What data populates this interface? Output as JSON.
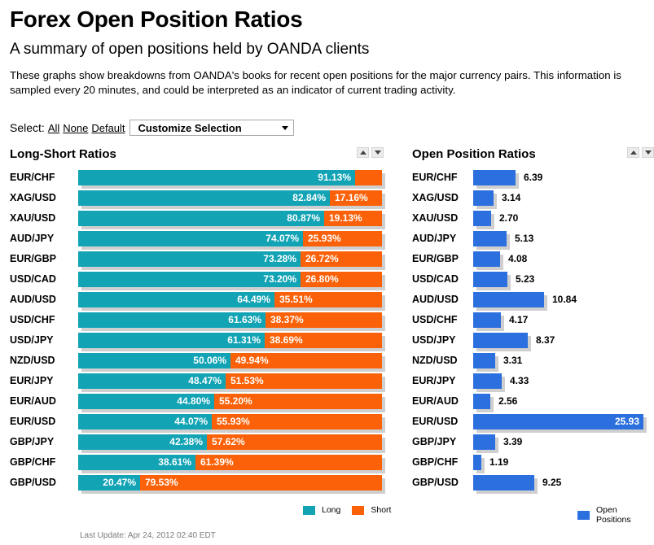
{
  "page": {
    "title": "Forex Open Position Ratios",
    "subtitle": "A summary of open positions held by OANDA clients",
    "description": "These graphs show breakdowns from OANDA's books for recent open positions for the major currency pairs. This information is sampled every 20 minutes, and could be interpreted as an indicator of current trading activity.",
    "select_label": "Select:",
    "select_all": "All",
    "select_none": "None",
    "select_default": "Default",
    "customize_label": "Customize Selection",
    "footer": "Last Update: Apr 24, 2012 02:40 EDT"
  },
  "colors": {
    "long": "#12a3b5",
    "short": "#fa6108",
    "open_positions": "#2c6fde",
    "shadow": "#cfcfcf"
  },
  "chart_data": [
    {
      "type": "bar",
      "orientation": "horizontal",
      "stacked": true,
      "title": "Long-Short Ratios",
      "categories": [
        "EUR/CHF",
        "XAG/USD",
        "XAU/USD",
        "AUD/JPY",
        "EUR/GBP",
        "USD/CAD",
        "AUD/USD",
        "USD/CHF",
        "USD/JPY",
        "NZD/USD",
        "EUR/JPY",
        "EUR/AUD",
        "EUR/USD",
        "GBP/JPY",
        "GBP/CHF",
        "GBP/USD"
      ],
      "series": [
        {
          "name": "Long",
          "values": [
            91.13,
            82.84,
            80.87,
            74.07,
            73.28,
            73.2,
            64.49,
            61.63,
            61.31,
            50.06,
            48.47,
            44.8,
            44.07,
            42.38,
            38.61,
            20.47
          ]
        },
        {
          "name": "Short",
          "values": [
            8.87,
            17.16,
            19.13,
            25.93,
            26.72,
            26.8,
            35.51,
            38.37,
            38.69,
            49.94,
            51.53,
            55.2,
            55.93,
            57.62,
            61.39,
            79.53
          ]
        }
      ],
      "labels_long": [
        "91.13%",
        "82.84%",
        "80.87%",
        "74.07%",
        "73.28%",
        "73.20%",
        "64.49%",
        "61.63%",
        "61.31%",
        "50.06%",
        "48.47%",
        "44.80%",
        "44.07%",
        "42.38%",
        "38.61%",
        "20.47%"
      ],
      "labels_short": [
        "",
        "17.16%",
        "19.13%",
        "25.93%",
        "26.72%",
        "26.80%",
        "35.51%",
        "38.37%",
        "38.69%",
        "49.94%",
        "51.53%",
        "55.20%",
        "55.93%",
        "57.62%",
        "61.39%",
        "79.53%"
      ],
      "xlim": [
        0,
        100
      ],
      "legend": {
        "position": "bottom-right",
        "entries": [
          "Long",
          "Short"
        ]
      }
    },
    {
      "type": "bar",
      "orientation": "horizontal",
      "title": "Open Position Ratios",
      "categories": [
        "EUR/CHF",
        "XAG/USD",
        "XAU/USD",
        "AUD/JPY",
        "EUR/GBP",
        "USD/CAD",
        "AUD/USD",
        "USD/CHF",
        "USD/JPY",
        "NZD/USD",
        "EUR/JPY",
        "EUR/AUD",
        "EUR/USD",
        "GBP/JPY",
        "GBP/CHF",
        "GBP/USD"
      ],
      "series": [
        {
          "name": "Open Positions",
          "values": [
            6.39,
            3.14,
            2.7,
            5.13,
            4.08,
            5.23,
            10.84,
            4.17,
            8.37,
            3.31,
            4.33,
            2.56,
            25.93,
            3.39,
            1.19,
            9.25
          ]
        }
      ],
      "labels": [
        "6.39",
        "3.14",
        "2.70",
        "5.13",
        "4.08",
        "5.23",
        "10.84",
        "4.17",
        "8.37",
        "3.31",
        "4.33",
        "2.56",
        "25.93",
        "3.39",
        "1.19",
        "9.25"
      ],
      "xlim": [
        0,
        25.93
      ],
      "legend": {
        "position": "bottom-right",
        "entries": [
          "Open Positions"
        ]
      }
    }
  ]
}
